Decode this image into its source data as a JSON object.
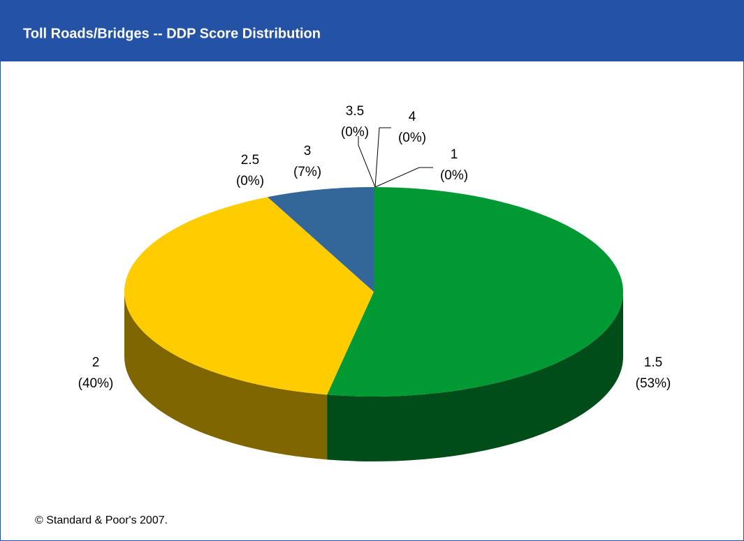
{
  "chart_data": {
    "type": "pie3d",
    "title": "Toll Roads/Bridges -- DDP Score Distribution",
    "categories": [
      "1",
      "1.5",
      "2",
      "2.5",
      "3",
      "3.5",
      "4"
    ],
    "values": [
      0,
      53,
      40,
      0,
      7,
      0,
      0
    ],
    "value_labels": [
      "(0%)",
      "(53%)",
      "(40%)",
      "(0%)",
      "(7%)",
      "(0%)",
      "(0%)"
    ],
    "colors": [
      null,
      "#009933",
      "#ffcc00",
      null,
      "#336699",
      null,
      null
    ],
    "footnote": "© Standard & Poor's 2007."
  }
}
